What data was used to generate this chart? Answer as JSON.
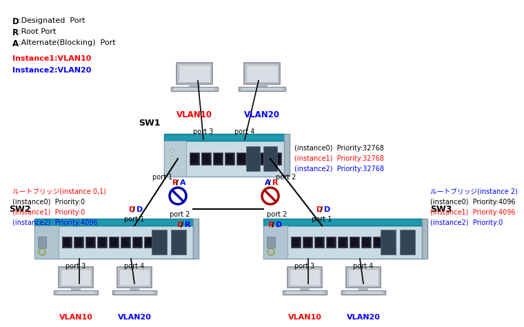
{
  "bg_color": "#ffffff",
  "sw_top_color": "#2299bb",
  "sw_body_color": "#d8e8f0",
  "sw_side_color": "#aabbc8",
  "sw_port_color": "#333344",
  "sw_sfp_color": "#ccddee",
  "legend": [
    {
      "bold": "D",
      "rest": ":Designated  Port"
    },
    {
      "bold": "R",
      "rest": ":Root Port"
    },
    {
      "bold": "A",
      "rest": ":Alternate(Blocking)  Port"
    }
  ],
  "instance_lines": [
    {
      "text": "Instance1:VLAN10",
      "color": "#ff0000"
    },
    {
      "text": "Instance2:VLAN20",
      "color": "#0000ff"
    }
  ],
  "sw1_priority": [
    {
      "text": "(instance0)  Priority:32768",
      "color": "#000000"
    },
    {
      "text": "(instance1)  Priority:32768",
      "color": "#ff0000"
    },
    {
      "text": "(instance2)  Priority:32768",
      "color": "#0000ff"
    }
  ],
  "sw2_info": [
    {
      "text": "ルートブリッジ(instance 0,1)",
      "color": "#ff0000"
    },
    {
      "text": "(instance0)  Priority:0",
      "color": "#000000"
    },
    {
      "text": "(instance1)  Priority:0",
      "color": "#ff0000"
    },
    {
      "text": "(instance2)  Priority:4096",
      "color": "#0000ff"
    }
  ],
  "sw3_info": [
    {
      "text": "ルートブリッジ(instance 2)",
      "color": "#0000ff"
    },
    {
      "text": "(instance0)  Priority:4096",
      "color": "#000000"
    },
    {
      "text": "(instance1)  Priority:4096",
      "color": "#ff0000"
    },
    {
      "text": "(instance2)  Priority:0",
      "color": "#0000ff"
    }
  ],
  "port_roles_sw1_p1": [
    {
      "text": "R",
      "color": "#ff0000"
    },
    {
      "text": "/",
      "color": "#000000"
    },
    {
      "text": "A",
      "color": "#0000ff"
    }
  ],
  "port_roles_sw1_p2": [
    {
      "text": "A",
      "color": "#0000ff"
    },
    {
      "text": "/",
      "color": "#000000"
    },
    {
      "text": "R",
      "color": "#ff0000"
    }
  ],
  "port_roles_sw2_p1": [
    {
      "text": "D",
      "color": "#ff0000"
    },
    {
      "text": "/",
      "color": "#000000"
    },
    {
      "text": "D",
      "color": "#0000ff"
    }
  ],
  "port_roles_sw3_p1": [
    {
      "text": "D",
      "color": "#ff0000"
    },
    {
      "text": "/",
      "color": "#000000"
    },
    {
      "text": "D",
      "color": "#0000ff"
    }
  ],
  "port_roles_sw2_p2": [
    {
      "text": "D",
      "color": "#ff0000"
    },
    {
      "text": "/",
      "color": "#000000"
    },
    {
      "text": "R",
      "color": "#0000ff"
    }
  ],
  "port_roles_sw3_p2": [
    {
      "text": "R",
      "color": "#ff0000"
    },
    {
      "text": "/",
      "color": "#000000"
    },
    {
      "text": "D",
      "color": "#0000ff"
    }
  ],
  "block1_color": "#0000aa",
  "block2_color": "#aa0000"
}
